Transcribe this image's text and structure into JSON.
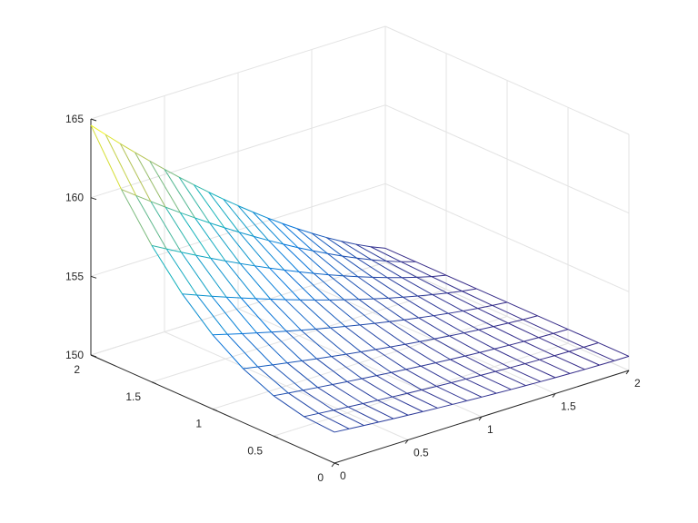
{
  "chart_data": {
    "type": "mesh3d",
    "title": "",
    "xlabel": "",
    "ylabel": "",
    "zlabel": "",
    "x_ticks": [
      "0",
      "0.5",
      "1",
      "1.5",
      "2"
    ],
    "y_ticks": [
      "0",
      "0.5",
      "1",
      "1.5",
      "2"
    ],
    "z_ticks": [
      "150",
      "155",
      "160",
      "165"
    ],
    "xlim": [
      0,
      2
    ],
    "ylim": [
      0,
      2
    ],
    "zlim": [
      150,
      165
    ],
    "grid": true,
    "colormap": "parula",
    "surface": {
      "u_range": [
        0,
        2
      ],
      "v_range": [
        0,
        2
      ],
      "u_steps": 20,
      "v_steps": 8,
      "z_min": 150.9,
      "z_at_u0_v0": 164.6,
      "z_at_u0_v2": 158.0,
      "note_direction": "z decreases along u (diagonal edge toward right-front) and drops sharply from v=2 to v=0"
    }
  }
}
